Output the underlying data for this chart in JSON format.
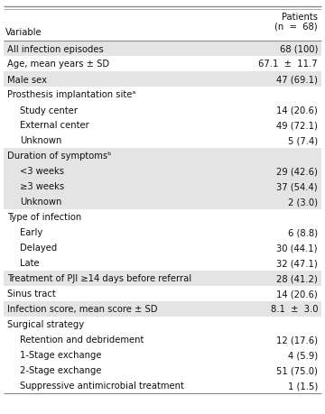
{
  "header_col1": "Variable",
  "header_col2_line1": "Patients",
  "header_col2_line2": "(n  =  68)",
  "rows": [
    {
      "label": "All infection episodes",
      "value": "68 (100)",
      "indent": 0,
      "shaded": true,
      "section": false
    },
    {
      "label": "Age, mean years ± SD",
      "value": "67.1  ±  11.7",
      "indent": 0,
      "shaded": false,
      "section": false
    },
    {
      "label": "Male sex",
      "value": "47 (69.1)",
      "indent": 0,
      "shaded": true,
      "section": false
    },
    {
      "label": "Prosthesis implantation siteᵃ",
      "value": "",
      "indent": 0,
      "shaded": false,
      "section": true
    },
    {
      "label": "Study center",
      "value": "14 (20.6)",
      "indent": 1,
      "shaded": false,
      "section": false
    },
    {
      "label": "External center",
      "value": "49 (72.1)",
      "indent": 1,
      "shaded": false,
      "section": false
    },
    {
      "label": "Unknown",
      "value": "5 (7.4)",
      "indent": 1,
      "shaded": false,
      "section": false
    },
    {
      "label": "Duration of symptomsᵇ",
      "value": "",
      "indent": 0,
      "shaded": true,
      "section": true
    },
    {
      "label": "<3 weeks",
      "value": "29 (42.6)",
      "indent": 1,
      "shaded": true,
      "section": false
    },
    {
      "label": "≥3 weeks",
      "value": "37 (54.4)",
      "indent": 1,
      "shaded": true,
      "section": false
    },
    {
      "label": "Unknown",
      "value": "2 (3.0)",
      "indent": 1,
      "shaded": true,
      "section": false
    },
    {
      "label": "Type of infection",
      "value": "",
      "indent": 0,
      "shaded": false,
      "section": true
    },
    {
      "label": "Early",
      "value": "6 (8.8)",
      "indent": 1,
      "shaded": false,
      "section": false
    },
    {
      "label": "Delayed",
      "value": "30 (44.1)",
      "indent": 1,
      "shaded": false,
      "section": false
    },
    {
      "label": "Late",
      "value": "32 (47.1)",
      "indent": 1,
      "shaded": false,
      "section": false
    },
    {
      "label": "Treatment of PJI ≥14 days before referral",
      "value": "28 (41.2)",
      "indent": 0,
      "shaded": true,
      "section": false
    },
    {
      "label": "Sinus tract",
      "value": "14 (20.6)",
      "indent": 0,
      "shaded": false,
      "section": false
    },
    {
      "label": "Infection score, mean score ± SD",
      "value": "8.1  ±  3.0",
      "indent": 0,
      "shaded": true,
      "section": false
    },
    {
      "label": "Surgical strategy",
      "value": "",
      "indent": 0,
      "shaded": false,
      "section": true
    },
    {
      "label": "Retention and debridement",
      "value": "12 (17.6)",
      "indent": 1,
      "shaded": false,
      "section": false
    },
    {
      "label": "1-Stage exchange",
      "value": "4 (5.9)",
      "indent": 1,
      "shaded": false,
      "section": false
    },
    {
      "label": "2-Stage exchange",
      "value": "51 (75.0)",
      "indent": 1,
      "shaded": false,
      "section": false
    },
    {
      "label": "Suppressive antimicrobial treatment",
      "value": "1 (1.5)",
      "indent": 1,
      "shaded": false,
      "section": false
    }
  ],
  "shaded_color": "#e4e4e4",
  "line_color": "#888888",
  "text_color": "#111111",
  "font_size": 7.2,
  "header_font_size": 7.2
}
